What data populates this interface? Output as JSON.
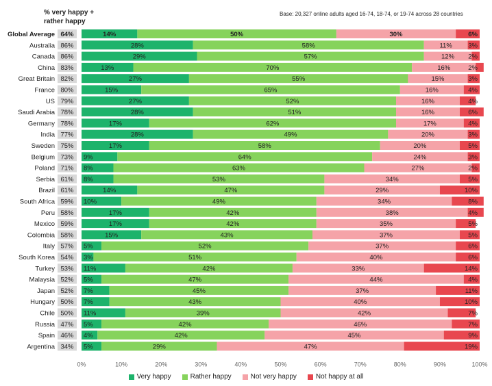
{
  "header": {
    "left_label": "% very happy + rather happy",
    "base_note": "Base: 20,327 online adults aged 16-74, 18-74, or 19-74 across 28 countries"
  },
  "chart_data": {
    "type": "bar",
    "orientation": "horizontal",
    "stacked": true,
    "categories": [
      "Global Average",
      "Australia",
      "Canada",
      "China",
      "Great Britain",
      "France",
      "US",
      "Saudi Arabia",
      "Germany",
      "India",
      "Sweden",
      "Belgium",
      "Poland",
      "Serbia",
      "Brazil",
      "South Africa",
      "Peru",
      "Mexico",
      "Colombia",
      "Italy",
      "South Korea",
      "Turkey",
      "Malaysia",
      "Japan",
      "Hungary",
      "Chile",
      "Russia",
      "Spain",
      "Argentina"
    ],
    "happy_totals": [
      "64%",
      "86%",
      "86%",
      "83%",
      "82%",
      "80%",
      "79%",
      "78%",
      "78%",
      "77%",
      "75%",
      "73%",
      "71%",
      "61%",
      "61%",
      "59%",
      "58%",
      "59%",
      "58%",
      "57%",
      "54%",
      "53%",
      "52%",
      "52%",
      "50%",
      "50%",
      "47%",
      "46%",
      "34%"
    ],
    "series": [
      {
        "name": "Very happy",
        "color": "#1db36b",
        "values": [
          14,
          28,
          29,
          13,
          27,
          15,
          27,
          28,
          17,
          28,
          17,
          9,
          8,
          8,
          14,
          10,
          17,
          17,
          15,
          5,
          3,
          11,
          5,
          7,
          7,
          11,
          5,
          4,
          5
        ]
      },
      {
        "name": "Rather happy",
        "color": "#86d35c",
        "values": [
          50,
          58,
          57,
          70,
          55,
          65,
          52,
          51,
          62,
          49,
          58,
          64,
          63,
          53,
          47,
          49,
          42,
          42,
          43,
          52,
          51,
          42,
          47,
          45,
          43,
          39,
          42,
          42,
          29
        ]
      },
      {
        "name": "Not very happy",
        "color": "#f5a3a8",
        "values": [
          30,
          11,
          12,
          16,
          15,
          16,
          16,
          16,
          17,
          20,
          20,
          24,
          27,
          34,
          29,
          34,
          38,
          35,
          37,
          37,
          40,
          33,
          44,
          37,
          40,
          42,
          46,
          45,
          47
        ]
      },
      {
        "name": "Not happy at all",
        "color": "#e8474f",
        "values": [
          6,
          3,
          2,
          2,
          3,
          4,
          4,
          6,
          4,
          3,
          5,
          3,
          2,
          5,
          10,
          8,
          4,
          5,
          5,
          6,
          6,
          14,
          4,
          11,
          10,
          7,
          7,
          9,
          19
        ]
      }
    ],
    "x_ticks": [
      "0%",
      "10%",
      "20%",
      "30%",
      "40%",
      "50%",
      "60%",
      "70%",
      "80%",
      "90%",
      "100%"
    ],
    "xlim": [
      0,
      100
    ],
    "legend_position": "bottom"
  }
}
